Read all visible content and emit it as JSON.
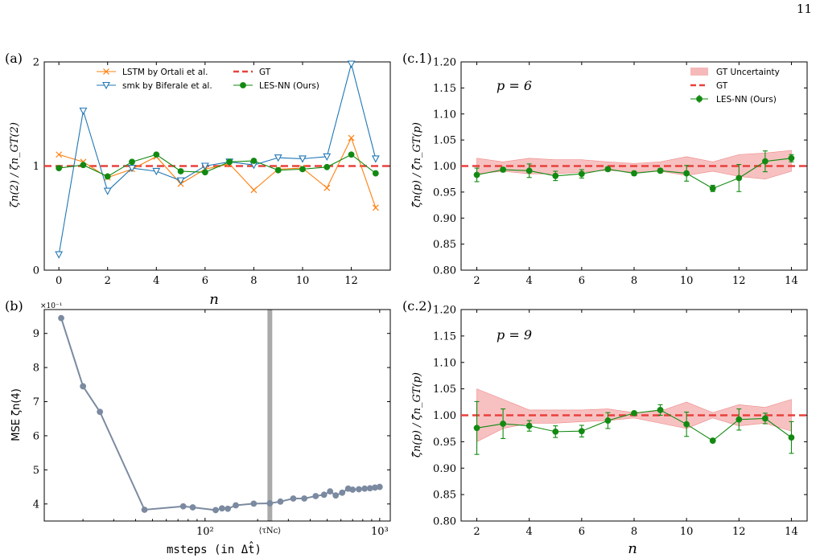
{
  "page_number": "11",
  "colors": {
    "orange": "#ff7f0e",
    "blue": "#1f77b4",
    "green": "#128a12",
    "gt_red": "#e8413c",
    "band": "#f4a7a7",
    "gray_series": "#7b8aa0",
    "vline": "#aaaaaa"
  },
  "chart_data": [
    {
      "id": "a",
      "panel_label": "(a)",
      "type": "line",
      "xlabel": "n",
      "ylabel": "ζn(2) / ζn_GT(2)",
      "xlim": [
        -0.6,
        13.6
      ],
      "ylim": [
        0,
        2
      ],
      "xticks": [
        0,
        2,
        4,
        6,
        8,
        10,
        12
      ],
      "yticks": [
        0,
        1,
        2
      ],
      "reference_line": {
        "name": "GT",
        "y": 1.0
      },
      "legend": [
        "LSTM by Ortali et al.",
        "GT",
        "smk by Biferale et al.",
        "LES-NN (Ours)"
      ],
      "legend_position": "top",
      "series": [
        {
          "name": "LSTM by Ortali et al.",
          "marker": "x",
          "x": [
            0,
            1,
            2,
            3,
            4,
            5,
            6,
            7,
            8,
            9,
            10,
            11,
            12,
            13
          ],
          "values": [
            1.11,
            1.04,
            0.89,
            0.97,
            1.09,
            0.83,
            0.97,
            1.02,
            0.77,
            0.97,
            0.98,
            0.79,
            1.27,
            0.6
          ]
        },
        {
          "name": "smk by Biferale et al.",
          "marker": "triangle-down",
          "x": [
            0,
            1,
            2,
            3,
            4,
            5,
            6,
            7,
            8,
            9,
            10,
            11,
            12,
            13
          ],
          "values": [
            0.15,
            1.53,
            0.76,
            0.98,
            0.95,
            0.86,
            1.0,
            1.04,
            1.01,
            1.08,
            1.07,
            1.09,
            1.98,
            1.07
          ]
        },
        {
          "name": "LES-NN (Ours)",
          "marker": "circle",
          "x": [
            0,
            1,
            2,
            3,
            4,
            5,
            6,
            7,
            8,
            9,
            10,
            11,
            12,
            13
          ],
          "values": [
            0.98,
            1.01,
            0.9,
            1.04,
            1.11,
            0.95,
            0.94,
            1.04,
            1.05,
            0.96,
            0.97,
            0.99,
            1.11,
            0.93
          ]
        }
      ]
    },
    {
      "id": "b",
      "panel_label": "(b)",
      "type": "line",
      "xscale": "log",
      "xlabel": "msteps (in Δt̂)",
      "ylabel": "MSE ζn(4)",
      "scale_note": "×10⁻¹",
      "xlim": [
        12,
        1150
      ],
      "ylim": [
        3.5,
        9.7
      ],
      "xticks": [
        100,
        1000
      ],
      "xtick_labels": [
        "10²",
        "10³"
      ],
      "yticks": [
        4,
        5,
        6,
        7,
        8,
        9
      ],
      "vline": {
        "x": 235,
        "label": "⟨τNc⟩"
      },
      "series": [
        {
          "name": "",
          "marker": "circle",
          "x": [
            15,
            20,
            25,
            45,
            75,
            85,
            115,
            125,
            135,
            150,
            190,
            235,
            270,
            320,
            370,
            430,
            480,
            520,
            560,
            610,
            660,
            700,
            760,
            820,
            880,
            940,
            1000
          ],
          "values": [
            9.45,
            7.45,
            6.7,
            3.83,
            3.93,
            3.9,
            3.82,
            3.87,
            3.86,
            3.96,
            4.01,
            4.02,
            4.07,
            4.16,
            4.16,
            4.23,
            4.27,
            4.37,
            4.25,
            4.33,
            4.45,
            4.42,
            4.43,
            4.45,
            4.46,
            4.48,
            4.5
          ]
        }
      ]
    },
    {
      "id": "c1",
      "panel_label": "(c.1)",
      "type": "line",
      "annotation": "p = 6",
      "xlabel": "",
      "ylabel": "ζ̂n(p) / ζ̂n_GT(p)",
      "xlim": [
        1.4,
        14.6
      ],
      "ylim": [
        0.8,
        1.2
      ],
      "xticks": [
        2,
        4,
        6,
        8,
        10,
        12,
        14
      ],
      "yticks": [
        0.8,
        0.85,
        0.9,
        0.95,
        1.0,
        1.05,
        1.1,
        1.15,
        1.2
      ],
      "ytick_labels": [
        "0.80",
        "0.85",
        "0.90",
        "0.95",
        "1.00",
        "1.05",
        "1.10",
        "1.15",
        "1.20"
      ],
      "reference_line": {
        "name": "GT",
        "y": 1.0
      },
      "legend": [
        "GT Uncertainty",
        "GT",
        "LES-NN (Ours)"
      ],
      "legend_position": "top-right",
      "band": {
        "name": "GT Uncertainty",
        "x": [
          2,
          3,
          4,
          5,
          6,
          7,
          8,
          9,
          10,
          11,
          12,
          13,
          14
        ],
        "lower": [
          0.985,
          0.99,
          0.985,
          0.985,
          0.988,
          0.992,
          0.988,
          0.99,
          0.982,
          0.99,
          0.98,
          0.975,
          0.99
        ],
        "upper": [
          1.015,
          1.008,
          1.015,
          1.012,
          1.012,
          1.008,
          1.005,
          1.008,
          1.018,
          1.008,
          1.022,
          1.025,
          1.03
        ]
      },
      "series": [
        {
          "name": "LES-NN (Ours)",
          "marker": "circle",
          "x": [
            2,
            3,
            4,
            5,
            6,
            7,
            8,
            9,
            10,
            11,
            12,
            13,
            14
          ],
          "values": [
            0.983,
            0.993,
            0.991,
            0.981,
            0.985,
            0.994,
            0.986,
            0.991,
            0.986,
            0.957,
            0.977,
            1.009,
            1.015
          ],
          "errors": [
            0.013,
            0.004,
            0.013,
            0.009,
            0.008,
            0.004,
            0.004,
            0.004,
            0.015,
            0.006,
            0.026,
            0.02,
            0.007
          ]
        }
      ]
    },
    {
      "id": "c2",
      "panel_label": "(c.2)",
      "type": "line",
      "annotation": "p = 9",
      "xlabel": "n",
      "ylabel": "ζ̂n(p) / ζ̂n_GT(p)",
      "xlim": [
        1.4,
        14.6
      ],
      "ylim": [
        0.8,
        1.2
      ],
      "xticks": [
        2,
        4,
        6,
        8,
        10,
        12,
        14
      ],
      "yticks": [
        0.8,
        0.85,
        0.9,
        0.95,
        1.0,
        1.05,
        1.1,
        1.15,
        1.2
      ],
      "ytick_labels": [
        "0.80",
        "0.85",
        "0.90",
        "0.95",
        "1.00",
        "1.05",
        "1.10",
        "1.15",
        "1.20"
      ],
      "reference_line": {
        "name": "GT",
        "y": 1.0
      },
      "band": {
        "name": "GT Uncertainty",
        "x": [
          2,
          3,
          4,
          5,
          6,
          7,
          8,
          9,
          10,
          11,
          12,
          13,
          14
        ],
        "lower": [
          0.95,
          0.975,
          0.985,
          0.985,
          0.988,
          0.99,
          0.995,
          0.985,
          0.975,
          0.995,
          0.98,
          0.985,
          0.97
        ],
        "upper": [
          1.05,
          1.03,
          1.01,
          1.01,
          1.01,
          1.012,
          1.005,
          1.008,
          1.025,
          1.005,
          1.02,
          1.015,
          1.03
        ]
      },
      "series": [
        {
          "name": "LES-NN (Ours)",
          "marker": "circle",
          "x": [
            2,
            3,
            4,
            5,
            6,
            7,
            8,
            9,
            10,
            11,
            12,
            13,
            14
          ],
          "values": [
            0.976,
            0.984,
            0.98,
            0.969,
            0.97,
            0.99,
            1.004,
            1.01,
            0.983,
            0.952,
            0.992,
            0.994,
            0.958
          ],
          "errors": [
            0.05,
            0.028,
            0.01,
            0.011,
            0.011,
            0.015,
            0.002,
            0.01,
            0.023,
            0.002,
            0.02,
            0.01,
            0.03
          ]
        }
      ]
    }
  ]
}
